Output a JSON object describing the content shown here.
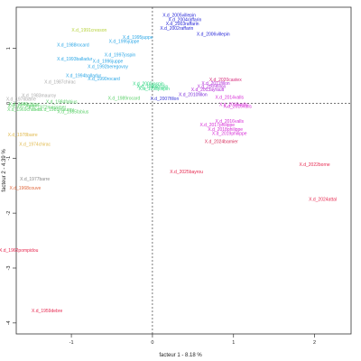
{
  "chart_data": {
    "type": "scatter",
    "xlabel": "facteur 1 - 8.18 %",
    "ylabel": "facteur 2 - 4.39 %",
    "xlim": [
      -1.68,
      2.45
    ],
    "ylim": [
      -4.2,
      1.75
    ],
    "xticks": [
      {
        "value": -1,
        "label": "-1"
      },
      {
        "value": 0,
        "label": "0"
      },
      {
        "value": 1,
        "label": "1"
      },
      {
        "value": 2,
        "label": "2"
      }
    ],
    "yticks": [
      {
        "value": 1,
        "label": "1"
      },
      {
        "value": 0,
        "label": "0"
      },
      {
        "value": -1,
        "label": "-1"
      },
      {
        "value": -2,
        "label": "-2"
      },
      {
        "value": -3,
        "label": "-3"
      },
      {
        "value": -4,
        "label": "-4"
      }
    ],
    "reference_lines": {
      "x": 0,
      "y": 0,
      "style": "dashed"
    },
    "points": [
      {
        "label": "X.d_2005villepin",
        "x": 0.33,
        "y": 1.6,
        "color": "#1f1fd6"
      },
      {
        "label": "X.d_2004raffarin",
        "x": 0.4,
        "y": 1.52,
        "color": "#1f1fd6"
      },
      {
        "label": "X.d_2003raffarin",
        "x": 0.37,
        "y": 1.44,
        "color": "#1f1fd6"
      },
      {
        "label": "X.d_2002raffarin",
        "x": 0.3,
        "y": 1.36,
        "color": "#1f1fd6"
      },
      {
        "label": "X.d_2006villepin",
        "x": 0.75,
        "y": 1.25,
        "color": "#1f1fd6"
      },
      {
        "label": "X.d_1991cresson",
        "x": -0.78,
        "y": 1.33,
        "color": "#b6d23a"
      },
      {
        "label": "X.d_1995juppe",
        "x": -0.18,
        "y": 1.2,
        "color": "#2aa6e6"
      },
      {
        "label": "X.d_1995juppe",
        "x": -0.35,
        "y": 1.12,
        "color": "#2aa6e6"
      },
      {
        "label": "X.d_1988rocard",
        "x": -0.98,
        "y": 1.06,
        "color": "#2aa6e6"
      },
      {
        "label": "X.d_1997jospin",
        "x": -0.4,
        "y": 0.88,
        "color": "#2aa6e6"
      },
      {
        "label": "X.d_1993balladur",
        "x": -0.96,
        "y": 0.8,
        "color": "#2aa6e6"
      },
      {
        "label": "X.d_1996juppe",
        "x": -0.55,
        "y": 0.76,
        "color": "#2aa6e6"
      },
      {
        "label": "X.d_1992beregovoy",
        "x": -0.55,
        "y": 0.66,
        "color": "#2aa6e6"
      },
      {
        "label": "X.d_1994balladur",
        "x": -0.85,
        "y": 0.5,
        "color": "#2aa6e6"
      },
      {
        "label": "X.d_1990rocard",
        "x": -0.6,
        "y": 0.44,
        "color": "#2aa6e6"
      },
      {
        "label": "X.d_1987chirac",
        "x": -1.14,
        "y": 0.38,
        "color": "#aaaaaa"
      },
      {
        "label": "X.d_1983mauroy",
        "x": -1.4,
        "y": 0.14,
        "color": "#aaaaaa"
      },
      {
        "label": "X.d_1976barre",
        "x": -1.62,
        "y": 0.07,
        "color": "#aaaaaa"
      },
      {
        "label": "X.d_1984fabius",
        "x": -1.12,
        "y": 0.02,
        "color": "#5cd06a"
      },
      {
        "label": "X.d_1986chirac",
        "x": -1.58,
        "y": -0.02,
        "color": "#5cd06a"
      },
      {
        "label": "X.d_1979barre",
        "x": -1.6,
        "y": -0.05,
        "color": "#5cd06a"
      },
      {
        "label": "X.d_1972messmer",
        "x": -1.3,
        "y": -0.08,
        "color": "#5cd06a"
      },
      {
        "label": "X.d_1981mauroy",
        "x": -1.18,
        "y": -0.12,
        "color": "#5cd06a"
      },
      {
        "label": "X.d_1985fabius",
        "x": -0.98,
        "y": -0.16,
        "color": "#5cd06a"
      },
      {
        "label": "X.d_1989rocard",
        "x": -0.35,
        "y": 0.09,
        "color": "#5cd06a"
      },
      {
        "label": "X.d_1969chaban",
        "x": -1.58,
        "y": -0.12,
        "color": "#5cd06a"
      },
      {
        "label": "X.d_2000jospin",
        "x": -0.05,
        "y": 0.35,
        "color": "#2dd680"
      },
      {
        "label": "X.d_1999jospin",
        "x": 0.0,
        "y": 0.3,
        "color": "#2dd680"
      },
      {
        "label": "X.d_1998jospin",
        "x": 0.02,
        "y": 0.26,
        "color": "#2dd680"
      },
      {
        "label": "X.d_2007fillon",
        "x": 0.15,
        "y": 0.08,
        "color": "#3a3ad8"
      },
      {
        "label": "X.d_2010fillon",
        "x": 0.5,
        "y": 0.15,
        "color": "#7a2ad8"
      },
      {
        "label": "X.d_2013ayrault",
        "x": 0.68,
        "y": 0.24,
        "color": "#b22ad8"
      },
      {
        "label": "X.d_2009fillon",
        "x": 0.73,
        "y": 0.3,
        "color": "#b22ad8"
      },
      {
        "label": "X.d_2011fillon",
        "x": 0.78,
        "y": 0.36,
        "color": "#b22ad8"
      },
      {
        "label": "X.d_2020castex",
        "x": 0.9,
        "y": 0.42,
        "color": "#d62a7a"
      },
      {
        "label": "X.d_2014valls",
        "x": 0.95,
        "y": 0.1,
        "color": "#d62ad6"
      },
      {
        "label": "X.d_2015valls",
        "x": 1.0,
        "y": -0.03,
        "color": "#d62ad6"
      },
      {
        "label": "X.d_2016valls",
        "x": 1.05,
        "y": -0.06,
        "color": "#d62ad6"
      },
      {
        "label": "X.d_2016valls",
        "x": 0.95,
        "y": -0.33,
        "color": "#d62ad6"
      },
      {
        "label": "X.d_2017philippe",
        "x": 0.8,
        "y": -0.4,
        "color": "#d62ad6"
      },
      {
        "label": "X.d_2018philippe",
        "x": 0.9,
        "y": -0.48,
        "color": "#d62ad6"
      },
      {
        "label": "X.d_2019philippe",
        "x": 0.95,
        "y": -0.55,
        "color": "#d62ad6"
      },
      {
        "label": "X.d_2024barnier",
        "x": 0.85,
        "y": -0.7,
        "color": "#d62a5a"
      },
      {
        "label": "X.d_2025bayrou",
        "x": 0.42,
        "y": -1.25,
        "color": "#e6284f"
      },
      {
        "label": "X.d_2022borne",
        "x": 2.0,
        "y": -1.12,
        "color": "#e6284f"
      },
      {
        "label": "X.d_2024attal",
        "x": 2.1,
        "y": -1.75,
        "color": "#e6284f"
      },
      {
        "label": "X.d_1978barre",
        "x": -1.6,
        "y": -0.58,
        "color": "#e0b84a"
      },
      {
        "label": "X.d_1974chirac",
        "x": -1.45,
        "y": -0.75,
        "color": "#e0b84a"
      },
      {
        "label": "X.d_1977barre",
        "x": -1.45,
        "y": -1.38,
        "color": "#888888"
      },
      {
        "label": "X.d_1968couve",
        "x": -1.57,
        "y": -1.55,
        "color": "#e0663a"
      },
      {
        "label": "X.d_1962pompidou",
        "x": -1.65,
        "y": -2.68,
        "color": "#e6284f"
      },
      {
        "label": "X.d_1959debre",
        "x": -1.3,
        "y": -3.78,
        "color": "#e6284f"
      }
    ]
  }
}
